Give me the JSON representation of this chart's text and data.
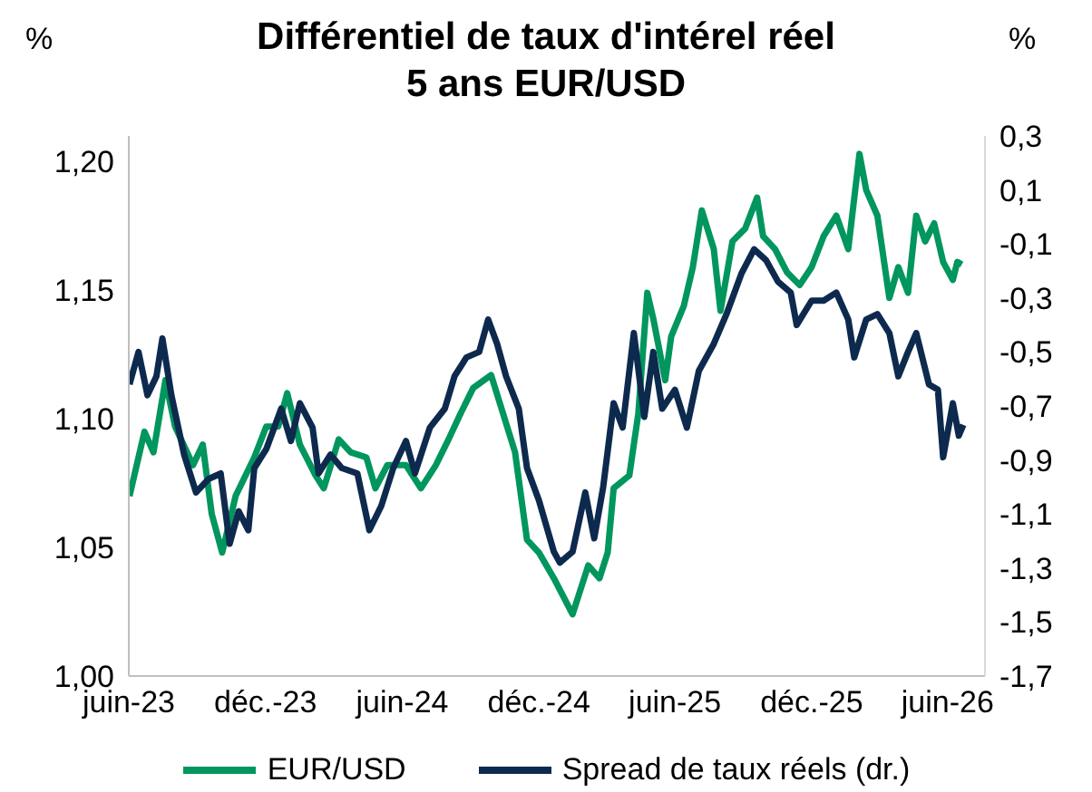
{
  "chart_data": {
    "type": "line",
    "title": "Différentiel de taux d'intérel réel\n5 ans EUR/USD",
    "ylabel": "%",
    "y2label": "%",
    "xlim": [
      "2023-06-01",
      "2026-07-21"
    ],
    "xticks": [
      {
        "value": "2023-06-01",
        "label": "juin-23"
      },
      {
        "value": "2023-12-01",
        "label": "déc.-23"
      },
      {
        "value": "2024-06-01",
        "label": "juin-24"
      },
      {
        "value": "2024-12-01",
        "label": "déc.-24"
      },
      {
        "value": "2025-06-01",
        "label": "juin-25"
      },
      {
        "value": "2025-12-01",
        "label": "déc.-25"
      },
      {
        "value": "2026-06-01",
        "label": "juin-26"
      }
    ],
    "ylim": [
      1.0,
      1.21
    ],
    "yticks": [
      {
        "value": 1.0,
        "label": "1,00"
      },
      {
        "value": 1.05,
        "label": "1,05"
      },
      {
        "value": 1.1,
        "label": "1,10"
      },
      {
        "value": 1.15,
        "label": "1,15"
      },
      {
        "value": 1.2,
        "label": "1,20"
      }
    ],
    "y2lim": [
      -1.7,
      0.3
    ],
    "y2ticks": [
      {
        "value": 0.3,
        "label": "0,3"
      },
      {
        "value": 0.1,
        "label": "0,1"
      },
      {
        "value": -0.1,
        "label": "-0,1"
      },
      {
        "value": -0.3,
        "label": "-0,3"
      },
      {
        "value": -0.5,
        "label": "-0,5"
      },
      {
        "value": -0.7,
        "label": "-0,7"
      },
      {
        "value": -0.9,
        "label": "-0,9"
      },
      {
        "value": -1.1,
        "label": "-1,1"
      },
      {
        "value": -1.3,
        "label": "-1,3"
      },
      {
        "value": -1.5,
        "label": "-1,5"
      },
      {
        "value": -1.7,
        "label": "-1,7"
      }
    ],
    "legend": "bottom",
    "series": [
      {
        "name": "EUR/USD",
        "color": "#00965e",
        "x": [
          "2023-06-02",
          "2023-06-22",
          "2023-07-04",
          "2023-07-20",
          "2023-08-02",
          "2023-08-26",
          "2023-09-08",
          "2023-09-20",
          "2023-10-04",
          "2023-10-22",
          "2023-11-16",
          "2023-12-02",
          "2023-12-18",
          "2023-12-30",
          "2024-01-16",
          "2024-02-06",
          "2024-02-17",
          "2024-03-08",
          "2024-03-24",
          "2024-04-14",
          "2024-04-26",
          "2024-05-12",
          "2024-06-06",
          "2024-06-26",
          "2024-07-16",
          "2024-08-02",
          "2024-08-18",
          "2024-09-04",
          "2024-09-28",
          "2024-10-14",
          "2024-10-30",
          "2024-11-15",
          "2024-12-01",
          "2024-12-21",
          "2025-01-15",
          "2025-02-05",
          "2025-02-20",
          "2025-03-03",
          "2025-03-11",
          "2025-04-01",
          "2025-04-13",
          "2025-04-25",
          "2025-05-03",
          "2025-05-19",
          "2025-05-27",
          "2025-06-13",
          "2025-06-25",
          "2025-07-07",
          "2025-07-23",
          "2025-08-01",
          "2025-08-17",
          "2025-09-03",
          "2025-09-19",
          "2025-09-27",
          "2025-10-13",
          "2025-10-29",
          "2025-11-15",
          "2025-12-01",
          "2025-12-17",
          "2026-01-03",
          "2026-01-19",
          "2026-02-03",
          "2026-02-12",
          "2026-02-27",
          "2026-03-15",
          "2026-03-27",
          "2026-04-09",
          "2026-04-20",
          "2026-05-02",
          "2026-05-14",
          "2026-05-26",
          "2026-06-08",
          "2026-06-14",
          "2026-06-20"
        ],
        "values": [
          1.07,
          1.095,
          1.087,
          1.115,
          1.097,
          1.082,
          1.09,
          1.063,
          1.048,
          1.07,
          1.085,
          1.097,
          1.097,
          1.11,
          1.09,
          1.078,
          1.073,
          1.092,
          1.087,
          1.085,
          1.073,
          1.082,
          1.082,
          1.073,
          1.082,
          1.092,
          1.102,
          1.112,
          1.117,
          1.102,
          1.087,
          1.053,
          1.048,
          1.038,
          1.024,
          1.043,
          1.038,
          1.048,
          1.073,
          1.078,
          1.102,
          1.149,
          1.139,
          1.115,
          1.132,
          1.144,
          1.159,
          1.181,
          1.166,
          1.142,
          1.169,
          1.174,
          1.186,
          1.171,
          1.166,
          1.157,
          1.152,
          1.159,
          1.171,
          1.179,
          1.166,
          1.203,
          1.189,
          1.179,
          1.147,
          1.159,
          1.149,
          1.179,
          1.169,
          1.176,
          1.161,
          1.154,
          1.161,
          1.16
        ]
      },
      {
        "name": "Spread de taux réels (dr.)",
        "color": "#0d2a4e",
        "axis": "y2",
        "x": [
          "2023-06-02",
          "2023-06-14",
          "2023-06-26",
          "2023-07-08",
          "2023-07-16",
          "2023-07-28",
          "2023-08-14",
          "2023-08-30",
          "2023-09-16",
          "2023-10-02",
          "2023-10-14",
          "2023-10-26",
          "2023-11-08",
          "2023-11-16",
          "2023-12-02",
          "2023-12-22",
          "2024-01-04",
          "2024-01-16",
          "2024-02-02",
          "2024-02-10",
          "2024-02-26",
          "2024-03-12",
          "2024-04-02",
          "2024-04-18",
          "2024-05-04",
          "2024-05-20",
          "2024-06-06",
          "2024-06-18",
          "2024-07-08",
          "2024-07-28",
          "2024-08-10",
          "2024-08-26",
          "2024-09-12",
          "2024-09-24",
          "2024-10-06",
          "2024-10-18",
          "2024-11-04",
          "2024-11-15",
          "2024-12-01",
          "2024-12-21",
          "2024-12-29",
          "2025-01-15",
          "2025-02-01",
          "2025-02-13",
          "2025-02-25",
          "2025-03-11",
          "2025-03-23",
          "2025-04-07",
          "2025-04-21",
          "2025-05-03",
          "2025-05-15",
          "2025-06-01",
          "2025-06-17",
          "2025-07-03",
          "2025-07-23",
          "2025-08-09",
          "2025-08-29",
          "2025-09-15",
          "2025-10-01",
          "2025-10-17",
          "2025-11-03",
          "2025-11-11",
          "2025-12-01",
          "2025-12-17",
          "2026-01-03",
          "2026-01-19",
          "2026-01-27",
          "2026-02-12",
          "2026-02-27",
          "2026-03-15",
          "2026-03-27",
          "2026-04-09",
          "2026-04-20",
          "2026-05-07",
          "2026-05-19",
          "2026-05-26",
          "2026-06-08",
          "2026-06-16",
          "2026-06-22"
        ],
        "values": [
          -0.62,
          -0.5,
          -0.66,
          -0.59,
          -0.45,
          -0.66,
          -0.88,
          -1.02,
          -0.97,
          -0.95,
          -1.21,
          -1.09,
          -1.16,
          -0.93,
          -0.86,
          -0.71,
          -0.83,
          -0.69,
          -0.78,
          -0.95,
          -0.88,
          -0.93,
          -0.95,
          -1.16,
          -1.07,
          -0.93,
          -0.83,
          -0.95,
          -0.78,
          -0.71,
          -0.59,
          -0.52,
          -0.5,
          -0.38,
          -0.47,
          -0.59,
          -0.71,
          -0.93,
          -1.05,
          -1.24,
          -1.28,
          -1.24,
          -1.02,
          -1.19,
          -1.0,
          -0.69,
          -0.78,
          -0.43,
          -0.74,
          -0.5,
          -0.71,
          -0.64,
          -0.78,
          -0.57,
          -0.47,
          -0.36,
          -0.21,
          -0.12,
          -0.16,
          -0.24,
          -0.28,
          -0.4,
          -0.31,
          -0.31,
          -0.28,
          -0.38,
          -0.52,
          -0.38,
          -0.36,
          -0.43,
          -0.59,
          -0.5,
          -0.43,
          -0.62,
          -0.64,
          -0.89,
          -0.69,
          -0.81,
          -0.77
        ]
      }
    ]
  }
}
